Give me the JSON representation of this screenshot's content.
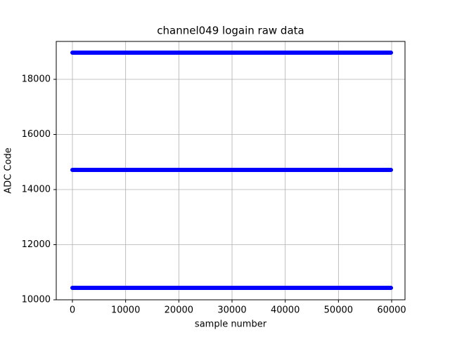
{
  "chart_data": {
    "type": "line",
    "title": "channel049 logain raw data",
    "x_label": "sample number",
    "y_label": "ADC Code",
    "series": [
      {
        "color": "#0000ff",
        "x": [
          0,
          59870
        ],
        "values": [
          18968,
          18968
        ]
      },
      {
        "color": "#0000ff",
        "x": [
          0,
          59870
        ],
        "values": [
          14713,
          14713
        ]
      },
      {
        "color": "#0000ff",
        "x": [
          0,
          59870
        ],
        "values": [
          10433,
          10433
        ]
      }
    ],
    "xlim": [
      -3040,
      62510
    ],
    "xticks": [
      0,
      10000,
      20000,
      30000,
      40000,
      50000,
      60000
    ],
    "ylim": [
      10000,
      19376
    ],
    "yticks": [
      10000,
      12000,
      14000,
      16000,
      18000
    ],
    "grid": true
  }
}
